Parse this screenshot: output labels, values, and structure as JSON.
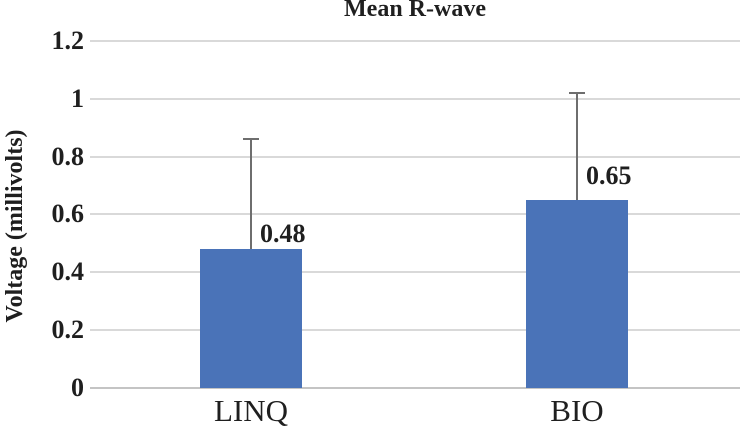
{
  "chart_data": {
    "type": "bar",
    "title": "Mean R-wave",
    "ylabel": "Voltage (millivolts)",
    "xlabel": "",
    "categories": [
      "LINQ",
      "BIO"
    ],
    "values": [
      0.48,
      0.65
    ],
    "data_labels": [
      "0.48",
      "0.65"
    ],
    "error_bar_tops": [
      0.86,
      1.02
    ],
    "ylim": [
      0,
      1.2
    ],
    "yticks": [
      0,
      0.2,
      0.4,
      0.6,
      0.8,
      1,
      1.2
    ],
    "ytick_labels": [
      "0",
      "0.2",
      "0.4",
      "0.6",
      "0.8",
      "1",
      "1.2"
    ],
    "grid": "horizontal",
    "legend": "none",
    "colors": {
      "bar": "#4a73b8",
      "gridline": "#d9d9d9",
      "axis_line": "#c4c4c4",
      "error_bar": "#6e6e6e",
      "text": "#1f1f1f"
    }
  }
}
